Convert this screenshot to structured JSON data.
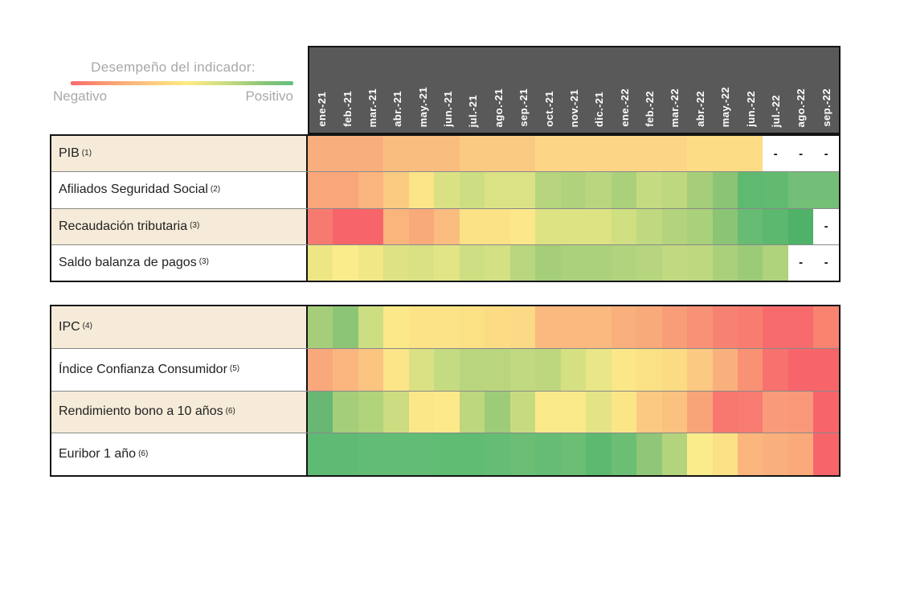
{
  "chart_data": {
    "type": "heatmap",
    "title": "Desempeño del indicador:",
    "legend": {
      "left_label": "Negativo",
      "right_label": "Positivo",
      "scale_colors": [
        "#F8696B",
        "#FFEB84",
        "#63BE7B"
      ],
      "description": "diverging red-yellow-green color scale; red = negative performance, green = positive performance"
    },
    "empty_cell_text": "-",
    "columns": [
      "ene-21",
      "feb.-21",
      "mar.-21",
      "abr.-21",
      "may.-21",
      "jun.-21",
      "jul.-21",
      "ago.-21",
      "sep.-21",
      "oct.-21",
      "nov.-21",
      "dic.-21",
      "ene.-22",
      "feb.-22",
      "mar.-22",
      "abr.-22",
      "may.-22",
      "jun.-22",
      "jul.-22",
      "ago.-22",
      "sep.-22"
    ],
    "groups": [
      {
        "name": "activity-indicators",
        "rows": [
          {
            "label": "PIB",
            "note": "(1)",
            "colors": [
              "#F9AF7D",
              "#F9AF7D",
              "#F9AF7D",
              "#FABD80",
              "#FABD80",
              "#FABD80",
              "#FBCA82",
              "#FBCA82",
              "#FBCA82",
              "#FCD686",
              "#FCD686",
              "#FCD686",
              "#FCD686",
              "#FCD686",
              "#FCD686",
              "#FCDC85",
              "#FCDC85",
              "#FCDC85",
              null,
              null,
              null
            ]
          },
          {
            "label": "Afiliados Seguridad Social",
            "note": "(2)",
            "colors": [
              "#F9A67A",
              "#F9A67A",
              "#FAB47E",
              "#FBCB82",
              "#FBE588",
              "#D9E184",
              "#CDDE82",
              "#DBE285",
              "#DBE285",
              "#B6D57E",
              "#B0D27C",
              "#B9D67F",
              "#ABD07B",
              "#C5DB81",
              "#BED87F",
              "#A6CE7A",
              "#8CC476",
              "#5FB970",
              "#62BA71",
              "#74BF78",
              "#74BF78"
            ]
          },
          {
            "label": "Recaudación tributaria",
            "note": "(3)",
            "colors": [
              "#F77A70",
              "#F7656B",
              "#F7656B",
              "#FAB57D",
              "#F9AA7B",
              "#FBBC7F",
              "#FBE286",
              "#FBE286",
              "#FCE78A",
              "#DDE283",
              "#DDE283",
              "#DDE283",
              "#CFDF82",
              "#C0D980",
              "#B3D47D",
              "#A9D07B",
              "#8CC476",
              "#68BB72",
              "#5CB76F",
              "#4FB268",
              null
            ]
          },
          {
            "label": "Saldo balanza de pagos",
            "note": "(3)",
            "colors": [
              "#EDE684",
              "#FBEC8B",
              "#F0E787",
              "#DEE284",
              "#DAE184",
              "#E3E486",
              "#CEDE82",
              "#D3E083",
              "#B8D67E",
              "#A6CE7A",
              "#ACD17C",
              "#ACD17C",
              "#B2D37D",
              "#B6D57E",
              "#C1D980",
              "#BED87F",
              "#A9D07B",
              "#9CCB78",
              "#AFD27C",
              null,
              null
            ]
          }
        ]
      },
      {
        "name": "price-financial-indicators",
        "rows": [
          {
            "label": "IPC",
            "note": "(4)",
            "colors": [
              "#A6CE7A",
              "#8CC576",
              "#CDDD82",
              "#FBE989",
              "#FCE387",
              "#FCE387",
              "#FCE084",
              "#FBDC85",
              "#FBD985",
              "#FAB97E",
              "#FAB97E",
              "#FAB97E",
              "#F9B07C",
              "#F9AA7B",
              "#F99C78",
              "#F89176",
              "#F88271",
              "#F87D70",
              "#F76B6C",
              "#F76B6C",
              "#F9836F"
            ]
          },
          {
            "label": "Índice Confianza Consumidor",
            "note": "(5)",
            "colors": [
              "#F9A87B",
              "#FAB67E",
              "#FBC481",
              "#FCE488",
              "#DAE184",
              "#C5DB81",
              "#B9D67E",
              "#B9D67E",
              "#C1D980",
              "#BDD77F",
              "#D5E083",
              "#E8E687",
              "#FBE788",
              "#FBE185",
              "#FBDC85",
              "#FBC981",
              "#FAB07C",
              "#F99174",
              "#F7716E",
              "#F7656B",
              "#F7656B"
            ]
          },
          {
            "label": "Rendimiento bono a 10 años",
            "note": "(6)",
            "colors": [
              "#68B873",
              "#A5CE7A",
              "#B1D37C",
              "#CCDC81",
              "#FAE788",
              "#FBE98A",
              "#BCD77E",
              "#9ECB78",
              "#C6DB80",
              "#FBEA8A",
              "#FBEA8A",
              "#E3E486",
              "#FBE687",
              "#FBC981",
              "#FBC17F",
              "#F9A478",
              "#F8786F",
              "#F87B71",
              "#F99B7A",
              "#F99878",
              "#F7656B"
            ]
          },
          {
            "label": "Euribor 1 año",
            "note": "(6)",
            "colors": [
              "#5FBA74",
              "#5FBA74",
              "#63BC76",
              "#63BC76",
              "#63BC76",
              "#60BB73",
              "#60BB73",
              "#65BC74",
              "#6CBE74",
              "#65BC74",
              "#6CBE74",
              "#5CB96F",
              "#6CBE74",
              "#90C677",
              "#B3D37D",
              "#FBEC8B",
              "#FBE086",
              "#FBB67E",
              "#FAB07C",
              "#FAAA7A",
              "#F7656B"
            ]
          }
        ]
      }
    ]
  }
}
